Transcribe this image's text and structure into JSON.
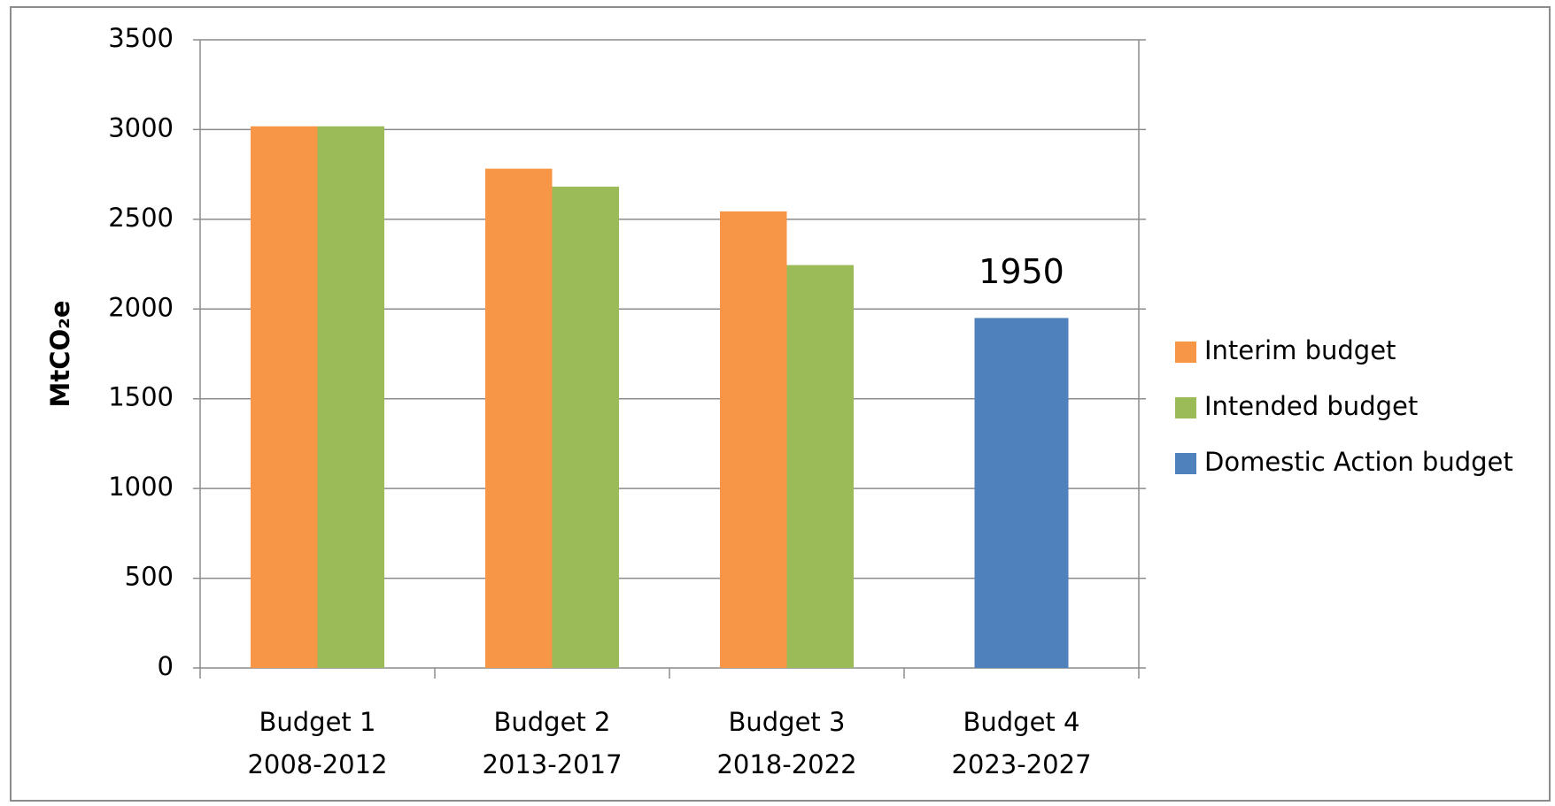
{
  "chart_data": {
    "type": "bar",
    "categories": [
      [
        "Budget 1",
        "2008-2012"
      ],
      [
        "Budget 2",
        "2013-2017"
      ],
      [
        "Budget 3",
        "2018-2022"
      ],
      [
        "Budget 4",
        "2023-2027"
      ]
    ],
    "series": [
      {
        "name": "Interim budget",
        "color": "#f79646",
        "values": [
          3018,
          2782,
          2544,
          null
        ]
      },
      {
        "name": "Intended budget",
        "color": "#9bbb59",
        "values": [
          3018,
          2682,
          2245,
          null
        ]
      },
      {
        "name": "Domestic Action budget",
        "color": "#4f81bd",
        "values": [
          null,
          null,
          null,
          1950
        ],
        "show_values": true
      }
    ],
    "y_label": "MtCO₂e",
    "ylim": [
      0,
      3500
    ],
    "yticks": [
      0,
      500,
      1000,
      1500,
      2000,
      2500,
      3000,
      3500
    ],
    "grid": true,
    "legend": "right"
  }
}
